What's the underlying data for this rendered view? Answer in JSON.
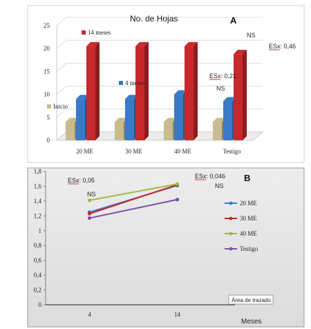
{
  "chart_data": [
    {
      "panel": "A",
      "type": "bar",
      "title": "No. de Hojas",
      "categories": [
        "20 ME",
        "30 ME",
        "40 ME",
        "Testigo"
      ],
      "ylim": [
        0,
        25
      ],
      "yticks": [
        0,
        5,
        10,
        15,
        20,
        25
      ],
      "grid": true,
      "series": [
        {
          "name": "Inicio",
          "color": "#c8bb8e",
          "values": [
            4,
            4,
            4,
            4
          ]
        },
        {
          "name": "4 meses",
          "color": "#3a78c8",
          "values": [
            9,
            9,
            10,
            8.5
          ]
        },
        {
          "name": "14 meses",
          "color": "#c8282c",
          "values": [
            20.5,
            20.5,
            20.5,
            18.8
          ]
        }
      ],
      "annotations": {
        "ns_top": "NS",
        "esx_top": "ESx: 0,46",
        "esx_mid": "ESx: 0,21",
        "ns_mid": "NS"
      }
    },
    {
      "panel": "B",
      "type": "line",
      "x": [
        "4",
        "14"
      ],
      "xlabel": "Meses",
      "ylim": [
        0,
        1.8
      ],
      "yticks": [
        "0",
        "0,2",
        "0,4",
        "0,6",
        "0,8",
        "1",
        "1,2",
        "1,4",
        "1,6",
        "1,8"
      ],
      "series": [
        {
          "name": "20 ME",
          "color": "#3a78c8",
          "values": [
            1.25,
            1.61
          ]
        },
        {
          "name": "30 ME",
          "color": "#c8282c",
          "values": [
            1.23,
            1.62
          ]
        },
        {
          "name": "40 ME",
          "color": "#9bbb3a",
          "values": [
            1.41,
            1.63
          ]
        },
        {
          "name": "Testigo",
          "color": "#7a4fa8",
          "values": [
            1.17,
            1.42
          ]
        }
      ],
      "annotations": {
        "esx_left": "ESx: 0,05",
        "ns_left": "NS",
        "esx_right": "ESx: 0,046",
        "ns_right": "NS"
      },
      "tooltip": "Área de trazado"
    }
  ],
  "labels": {
    "panel_a": "A",
    "panel_b": "B"
  }
}
